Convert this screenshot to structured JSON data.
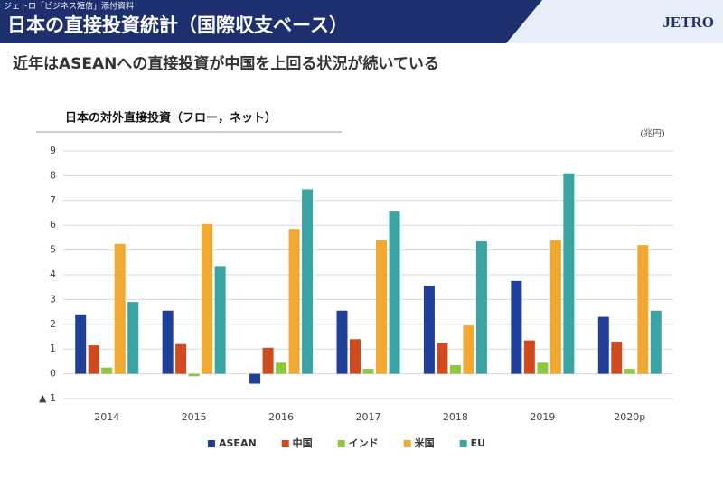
{
  "header": {
    "note": "ジェトロ「ビジネス短信」添付資料",
    "title": "日本の直接投資統計（国際収支ベース）",
    "logo": "JETRO"
  },
  "subtitle": "近年はASEANへの直接投資が中国を上回る状況が続いている",
  "chart_data": {
    "type": "bar",
    "title": "日本の対外直接投資（フロー，ネット）",
    "unit": "(兆円)",
    "categories": [
      "2014",
      "2015",
      "2016",
      "2017",
      "2018",
      "2019",
      "2020p"
    ],
    "series": [
      {
        "name": "ASEAN",
        "color": "#1f3f9a",
        "values": [
          2.4,
          2.55,
          -0.4,
          2.55,
          3.55,
          3.75,
          2.3
        ]
      },
      {
        "name": "中国",
        "color": "#d04a1f",
        "values": [
          1.15,
          1.2,
          1.05,
          1.4,
          1.25,
          1.35,
          1.3
        ]
      },
      {
        "name": "インド",
        "color": "#8dc63f",
        "values": [
          0.25,
          -0.1,
          0.45,
          0.2,
          0.35,
          0.45,
          0.2
        ]
      },
      {
        "name": "米国",
        "color": "#f0a830",
        "values": [
          5.25,
          6.05,
          5.85,
          5.4,
          1.95,
          5.4,
          5.2
        ]
      },
      {
        "name": "EU",
        "color": "#3aa3a3",
        "values": [
          2.9,
          4.35,
          7.45,
          6.55,
          5.35,
          8.1,
          2.55
        ]
      }
    ],
    "ylim": [
      -1,
      9
    ],
    "yticks": [
      {
        "value": -1,
        "label": "▲ 1"
      },
      0,
      1,
      2,
      3,
      4,
      5,
      6,
      7,
      8,
      9
    ],
    "grid": true,
    "legend": "bottom"
  }
}
